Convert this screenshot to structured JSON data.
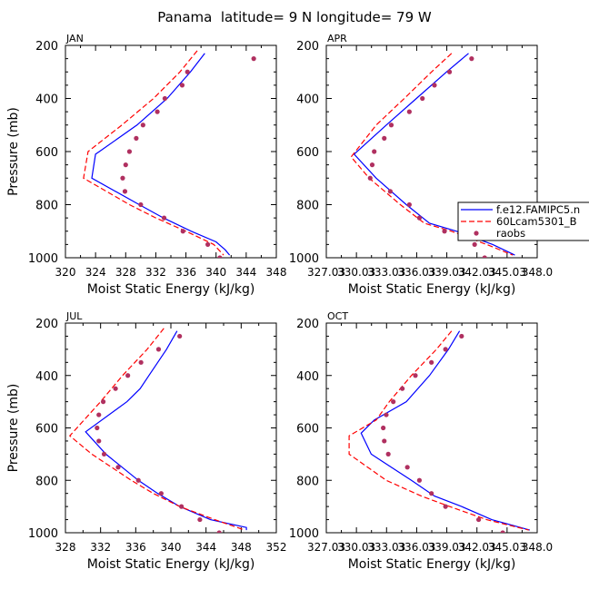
{
  "figure_title": "Panama  latitude= 9 N longitude= 79 W",
  "colors": {
    "model1": "#0000ff",
    "model2": "#ff0000",
    "obs": "#b03060"
  },
  "legend": {
    "entries": [
      "f.e12.FAMIPC5.n",
      "60Lcam5301_B",
      "raobs"
    ]
  },
  "chart_data": [
    {
      "type": "line",
      "panel_label": "JAN",
      "xlabel": "Moist Static Energy (kJ/kg)",
      "ylabel": "Pressure (mb)",
      "xlim": [
        320,
        348
      ],
      "ylim": [
        1000,
        200
      ],
      "y_inverted": true,
      "xticks": [
        320,
        324,
        328,
        332,
        336,
        340,
        344,
        348
      ],
      "xtick_labels": [
        "320",
        "324",
        "328",
        "332",
        "336",
        "340",
        "344",
        "348"
      ],
      "yticks": [
        200,
        400,
        600,
        800,
        1000
      ],
      "ytick_labels": [
        "200",
        "400",
        "600",
        "800",
        "1000"
      ],
      "series": [
        {
          "name": "f.e12.FAMIPC5.n",
          "style": "solid",
          "pressure": [
            230,
            300,
            400,
            500,
            600,
            610,
            700,
            800,
            850,
            900,
            940,
            970,
            990
          ],
          "values": [
            338.5,
            336.6,
            333.5,
            329.5,
            324.5,
            324.0,
            323.5,
            329.8,
            333.0,
            336.7,
            340.0,
            341.2,
            341.8
          ]
        },
        {
          "name": "60Lcam5301_B",
          "style": "dashed",
          "pressure": [
            220,
            300,
            400,
            500,
            600,
            700,
            800,
            850,
            900,
            950,
            990
          ],
          "values": [
            337.5,
            335.2,
            331.7,
            327.5,
            323.0,
            322.4,
            328.5,
            332.0,
            336.0,
            339.7,
            341.0
          ]
        },
        {
          "name": "raobs",
          "style": "markers",
          "pressure": [
            250,
            300,
            350,
            400,
            450,
            500,
            550,
            600,
            650,
            700,
            750,
            800,
            850,
            900,
            950,
            1000
          ],
          "values": [
            345.0,
            336.2,
            335.5,
            333.2,
            332.2,
            330.3,
            329.4,
            328.5,
            328.0,
            327.6,
            327.9,
            330.0,
            333.1,
            335.6,
            338.9,
            340.5
          ]
        }
      ]
    },
    {
      "type": "line",
      "panel_label": "APR",
      "xlabel": "Moist Static Energy (kJ/kg)",
      "ylabel": "",
      "xlim": [
        327.03,
        348.03
      ],
      "ylim": [
        1000,
        200
      ],
      "y_inverted": true,
      "xticks": [
        327.03,
        330.03,
        333.03,
        336.03,
        339.03,
        342.03,
        345.03,
        348.03
      ],
      "xtick_labels": [
        "327.03",
        "330.03",
        "333.03",
        "336.03",
        "339.03",
        "342.03",
        "345.03",
        "348.0"
      ],
      "yticks": [
        200,
        400,
        600,
        800,
        1000
      ],
      "ytick_labels": [
        "200",
        "400",
        "600",
        "800",
        "1000"
      ],
      "series": [
        {
          "name": "f.e12.FAMIPC5.n",
          "style": "solid",
          "pressure": [
            230,
            300,
            400,
            500,
            610,
            700,
            800,
            870,
            900,
            950,
            990
          ],
          "values": [
            341.2,
            339.0,
            336.0,
            333.0,
            329.8,
            332.0,
            335.0,
            337.3,
            340.0,
            343.6,
            345.8
          ]
        },
        {
          "name": "60Lcam5301_B",
          "style": "dashed",
          "pressure": [
            230,
            300,
            400,
            500,
            620,
            700,
            800,
            870,
            900,
            950,
            990
          ],
          "values": [
            339.5,
            337.5,
            334.8,
            332.0,
            329.5,
            331.3,
            334.4,
            336.8,
            339.5,
            343.0,
            345.6
          ]
        },
        {
          "name": "raobs",
          "style": "markers",
          "pressure": [
            250,
            300,
            350,
            400,
            450,
            500,
            550,
            600,
            650,
            700,
            750,
            800,
            850,
            900,
            950,
            1000
          ],
          "values": [
            341.5,
            339.3,
            337.8,
            336.6,
            335.3,
            333.5,
            332.8,
            331.8,
            331.6,
            331.4,
            333.4,
            335.3,
            336.3,
            338.8,
            341.8,
            342.8
          ]
        }
      ]
    },
    {
      "type": "line",
      "panel_label": "JUL",
      "xlabel": "Moist Static Energy (kJ/kg)",
      "ylabel": "Pressure (mb)",
      "xlim": [
        328,
        352
      ],
      "ylim": [
        1000,
        200
      ],
      "y_inverted": true,
      "xticks": [
        328,
        332,
        336,
        340,
        344,
        348,
        352
      ],
      "xtick_labels": [
        "328",
        "332",
        "336",
        "340",
        "344",
        "348",
        "352"
      ],
      "yticks": [
        200,
        400,
        600,
        800,
        1000
      ],
      "ytick_labels": [
        "200",
        "400",
        "600",
        "800",
        "1000"
      ],
      "series": [
        {
          "name": "f.e12.FAMIPC5.n",
          "style": "solid",
          "pressure": [
            230,
            300,
            400,
            450,
            500,
            615,
            700,
            800,
            850,
            900,
            950,
            980,
            990
          ],
          "values": [
            340.7,
            339.5,
            337.5,
            336.5,
            335.0,
            330.3,
            332.6,
            336.3,
            338.5,
            341.0,
            344.5,
            348.6,
            348.6
          ]
        },
        {
          "name": "60Lcam5301_B",
          "style": "dashed",
          "pressure": [
            220,
            300,
            400,
            500,
            630,
            700,
            800,
            850,
            900,
            950,
            990
          ],
          "values": [
            339.2,
            337.3,
            334.5,
            332.0,
            328.5,
            331.0,
            335.5,
            338.0,
            341.0,
            345.0,
            348.4
          ]
        },
        {
          "name": "raobs",
          "style": "markers",
          "pressure": [
            250,
            300,
            350,
            400,
            450,
            500,
            550,
            600,
            650,
            700,
            750,
            800,
            850,
            900,
            950,
            1000
          ],
          "values": [
            341.0,
            338.6,
            336.6,
            335.1,
            333.7,
            332.3,
            331.8,
            331.6,
            331.8,
            332.4,
            334.0,
            336.3,
            338.9,
            341.2,
            343.3,
            345.5
          ]
        }
      ]
    },
    {
      "type": "line",
      "panel_label": "OCT",
      "xlabel": "Moist Static Energy (kJ/kg)",
      "ylabel": "",
      "xlim": [
        327.03,
        348.03
      ],
      "ylim": [
        1000,
        200
      ],
      "y_inverted": true,
      "xticks": [
        327.03,
        330.03,
        333.03,
        336.03,
        339.03,
        342.03,
        345.03,
        348.03
      ],
      "xtick_labels": [
        "327.03",
        "330.03",
        "333.03",
        "336.03",
        "339.03",
        "342.03",
        "345.03",
        "348.0"
      ],
      "yticks": [
        200,
        400,
        600,
        800,
        1000
      ],
      "ytick_labels": [
        "200",
        "400",
        "600",
        "800",
        "1000"
      ],
      "series": [
        {
          "name": "f.e12.FAMIPC5.n",
          "style": "solid",
          "pressure": [
            230,
            300,
            400,
            500,
            570,
            620,
            700,
            800,
            860,
            900,
            950,
            990
          ],
          "values": [
            340.3,
            339.2,
            337.3,
            335.0,
            331.8,
            330.5,
            331.5,
            335.5,
            337.8,
            340.5,
            343.5,
            347.3
          ]
        },
        {
          "name": "60Lcam5301_B",
          "style": "dashed",
          "pressure": [
            230,
            300,
            400,
            500,
            570,
            630,
            700,
            800,
            860,
            900,
            950,
            990
          ],
          "values": [
            339.5,
            338.0,
            335.5,
            333.3,
            332.0,
            329.3,
            329.3,
            333.0,
            336.5,
            339.3,
            343.0,
            347.2
          ]
        },
        {
          "name": "raobs",
          "style": "markers",
          "pressure": [
            250,
            300,
            350,
            400,
            450,
            500,
            550,
            600,
            650,
            700,
            750,
            800,
            850,
            900,
            950,
            1000
          ],
          "values": [
            340.5,
            338.9,
            337.5,
            335.9,
            334.6,
            333.7,
            333.0,
            332.7,
            332.8,
            333.2,
            335.1,
            336.3,
            337.5,
            338.9,
            342.2,
            344.6
          ]
        }
      ]
    }
  ]
}
